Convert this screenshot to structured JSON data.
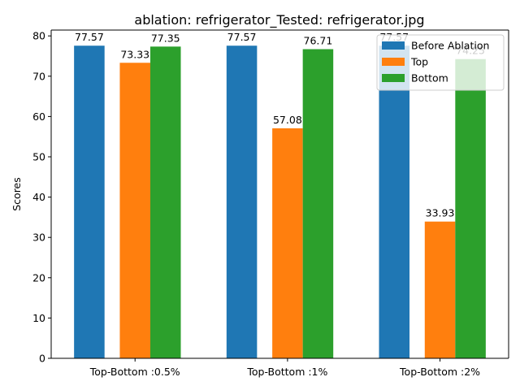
{
  "chart_data": {
    "type": "bar",
    "title": "ablation: refrigerator_Tested: refrigerator.jpg",
    "xlabel": "",
    "ylabel": "Scores",
    "categories": [
      "Top-Bottom :0.5%",
      "Top-Bottom :1%",
      "Top-Bottom :2%"
    ],
    "series": [
      {
        "name": "Before Ablation",
        "color": "#1f77b4",
        "values": [
          77.57,
          77.57,
          77.57
        ],
        "labels": [
          "77.57",
          "77.57",
          "77.57"
        ]
      },
      {
        "name": "Top",
        "color": "#ff7f0e",
        "values": [
          73.33,
          57.08,
          33.93
        ],
        "labels": [
          "73.33",
          "57.08",
          "33.93"
        ]
      },
      {
        "name": "Bottom",
        "color": "#2ca02c",
        "values": [
          77.35,
          76.71,
          74.25
        ],
        "labels": [
          "77.35",
          "76.71",
          "74.25"
        ]
      }
    ],
    "ylim": [
      0,
      81.45
    ],
    "yticks": [
      0,
      10,
      20,
      30,
      40,
      50,
      60,
      70,
      80
    ],
    "ytick_labels": [
      "0",
      "10",
      "20",
      "30",
      "40",
      "50",
      "60",
      "70",
      "80"
    ],
    "grid": false,
    "legend_position": "top-right"
  }
}
